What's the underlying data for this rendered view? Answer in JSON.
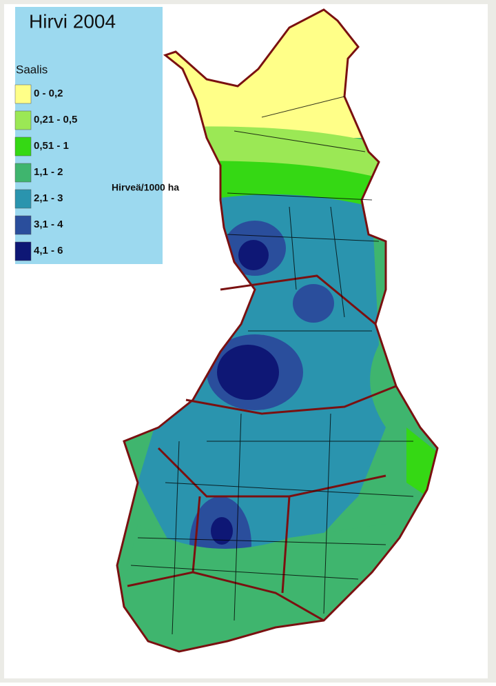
{
  "legend": {
    "title": "Hirvi 2004",
    "heading": "Saalis",
    "unit": "Hirveä/1000 ha",
    "items": [
      {
        "label": "0 - 0,2",
        "color": "#ffff88"
      },
      {
        "label": "0,21 - 0,5",
        "color": "#9be855"
      },
      {
        "label": "0,51 - 1",
        "color": "#35d814"
      },
      {
        "label": "1,1 - 2",
        "color": "#3fb56e"
      },
      {
        "label": "2,1 - 3",
        "color": "#2a94ae"
      },
      {
        "label": "3,1 - 4",
        "color": "#2a4e9c"
      },
      {
        "label": "4,1 - 6",
        "color": "#0e1775"
      }
    ]
  }
}
